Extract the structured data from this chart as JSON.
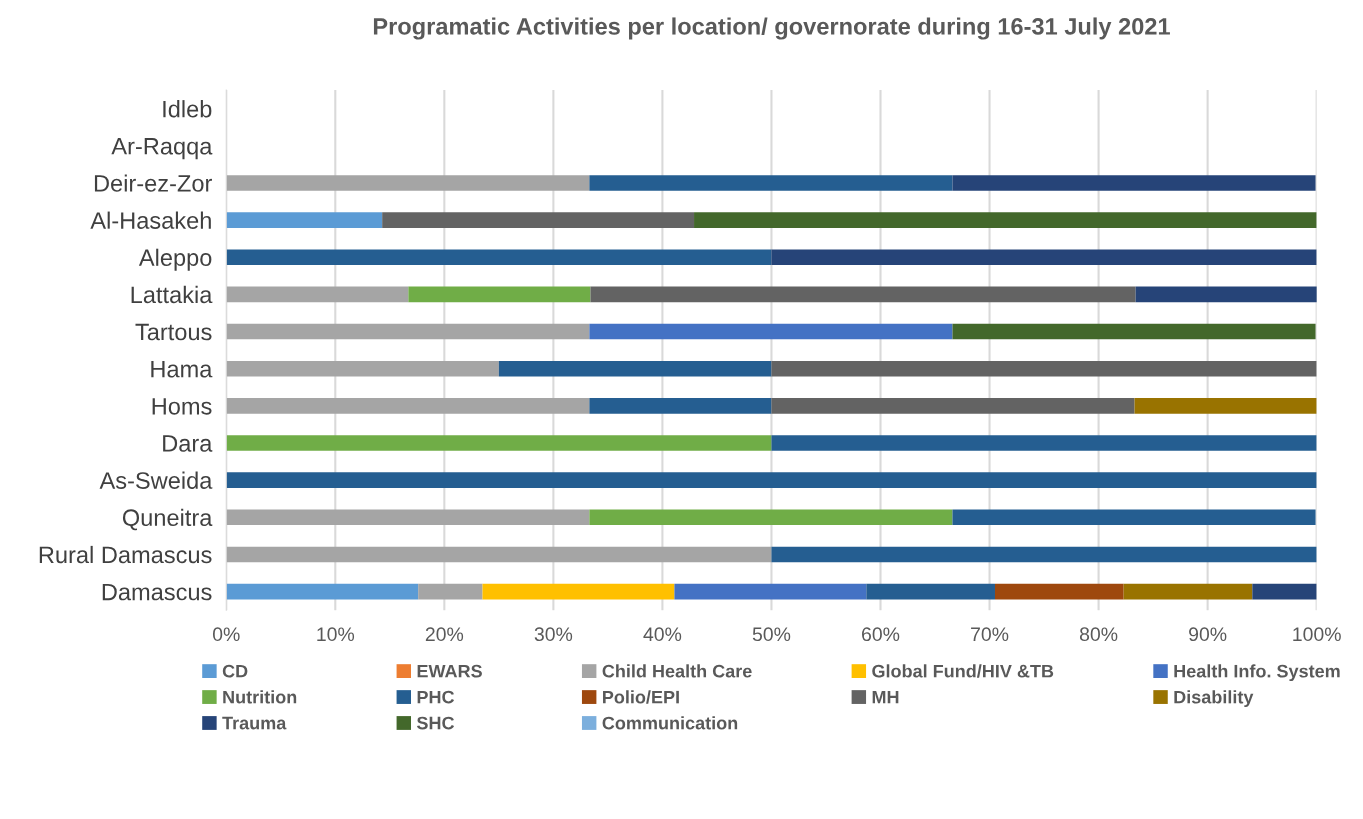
{
  "chart_data": {
    "type": "bar",
    "orientation": "horizontal",
    "stacked": true,
    "title": "Programatic Activities per location/ governorate during 16-31 July 2021",
    "categories": [
      "Idleb",
      "Ar-Raqqa",
      "Deir-ez-Zor",
      "Al-Hasakeh",
      "Aleppo",
      "Lattakia",
      "Tartous",
      "Hama",
      "Homs",
      "Dara",
      "As-Sweida",
      "Quneitra",
      "Rural Damascus",
      "Damascus"
    ],
    "series": [
      {
        "name": "CD",
        "color": "#5b9bd5",
        "values": [
          null,
          null,
          null,
          14.3,
          null,
          null,
          null,
          null,
          null,
          null,
          null,
          null,
          null,
          17.6
        ]
      },
      {
        "name": "EWARS",
        "color": "#ed7d31",
        "values": [
          null,
          null,
          null,
          null,
          null,
          null,
          null,
          null,
          null,
          null,
          null,
          null,
          null,
          null
        ]
      },
      {
        "name": "Child Health Care",
        "color": "#a5a5a5",
        "values": [
          null,
          null,
          33.3,
          null,
          null,
          16.7,
          33.3,
          25,
          33.3,
          null,
          null,
          33.3,
          50,
          5.9
        ]
      },
      {
        "name": "Global Fund/HIV &TB",
        "color": "#ffc000",
        "values": [
          null,
          null,
          null,
          null,
          null,
          null,
          null,
          null,
          null,
          null,
          null,
          null,
          null,
          17.6
        ]
      },
      {
        "name": "Health Info. System",
        "color": "#4472c4",
        "values": [
          null,
          null,
          null,
          null,
          null,
          null,
          33.3,
          null,
          null,
          null,
          null,
          null,
          null,
          17.6
        ]
      },
      {
        "name": "Nutrition",
        "color": "#70ad47",
        "values": [
          null,
          null,
          null,
          null,
          null,
          16.7,
          null,
          null,
          null,
          50,
          null,
          33.3,
          null,
          null
        ]
      },
      {
        "name": "PHC",
        "color": "#255e91",
        "values": [
          null,
          null,
          33.3,
          null,
          50,
          null,
          null,
          25,
          16.7,
          50,
          100,
          33.3,
          50,
          11.8
        ]
      },
      {
        "name": "Polio/EPI",
        "color": "#9e480e",
        "values": [
          null,
          null,
          null,
          null,
          null,
          null,
          null,
          null,
          null,
          null,
          null,
          null,
          null,
          11.8
        ]
      },
      {
        "name": "MH",
        "color": "#636363",
        "values": [
          null,
          null,
          null,
          28.6,
          null,
          50,
          null,
          50,
          33.3,
          null,
          null,
          null,
          null,
          null
        ]
      },
      {
        "name": "Disability",
        "color": "#997300",
        "values": [
          null,
          null,
          null,
          null,
          null,
          null,
          null,
          null,
          16.7,
          null,
          null,
          null,
          null,
          11.8
        ]
      },
      {
        "name": "Trauma",
        "color": "#264478",
        "values": [
          null,
          null,
          33.3,
          null,
          50,
          16.7,
          null,
          null,
          null,
          null,
          null,
          null,
          null,
          5.9
        ]
      },
      {
        "name": "SHC",
        "color": "#43682b",
        "values": [
          null,
          null,
          null,
          57.1,
          null,
          null,
          33.3,
          null,
          null,
          null,
          null,
          null,
          null,
          null
        ]
      },
      {
        "name": "Communication",
        "color": "#7cafdd",
        "values": [
          null,
          null,
          null,
          null,
          null,
          null,
          null,
          null,
          null,
          null,
          null,
          null,
          null,
          null
        ]
      }
    ],
    "xlim": [
      0,
      100
    ],
    "xticks": [
      {
        "value": 0,
        "label": "0%"
      },
      {
        "value": 10,
        "label": "10%"
      },
      {
        "value": 20,
        "label": "20%"
      },
      {
        "value": 30,
        "label": "30%"
      },
      {
        "value": 40,
        "label": "40%"
      },
      {
        "value": 50,
        "label": "50%"
      },
      {
        "value": 60,
        "label": "60%"
      },
      {
        "value": 70,
        "label": "70%"
      },
      {
        "value": 80,
        "label": "80%"
      },
      {
        "value": 90,
        "label": "90%"
      },
      {
        "value": 100,
        "label": "100%"
      }
    ],
    "grid": "x",
    "legend": "bottom"
  }
}
